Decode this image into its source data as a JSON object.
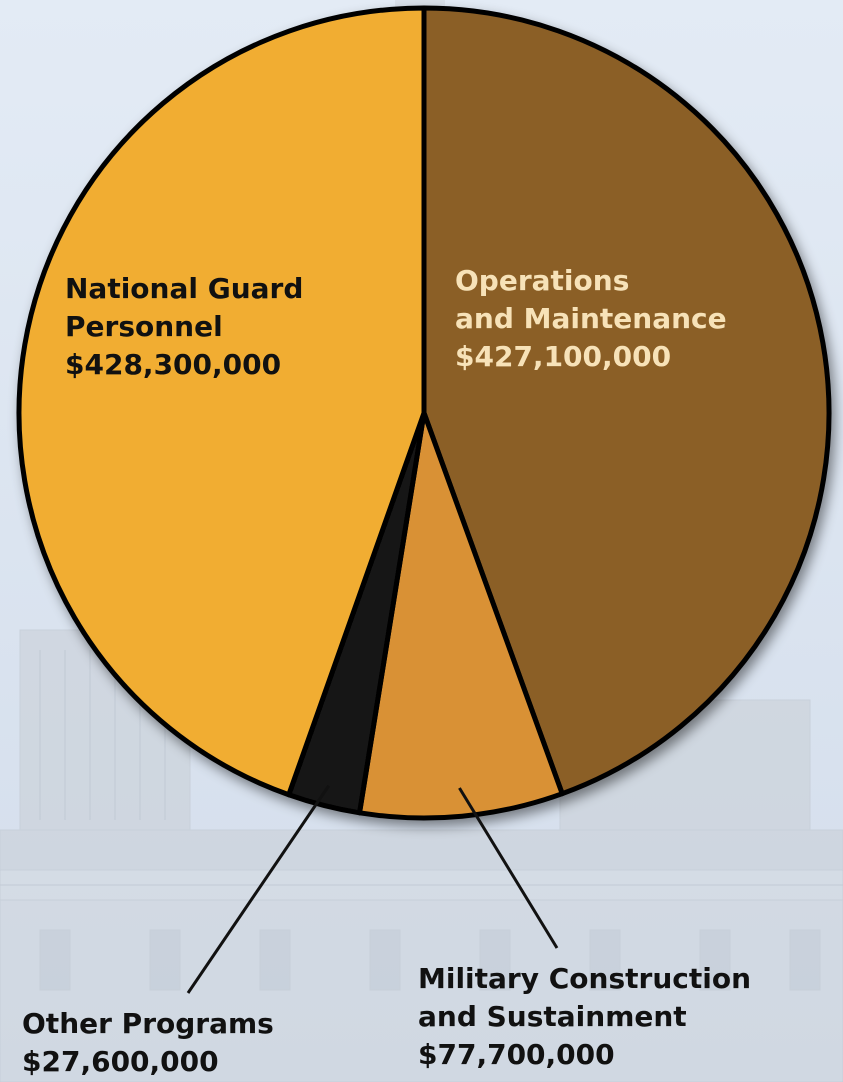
{
  "chart_data": {
    "type": "pie",
    "title": "",
    "slices": [
      {
        "name": "Operations and Maintenance",
        "value": 427100000,
        "value_label": "$427,100,000",
        "color": "#8b5e28"
      },
      {
        "name": "Military Construction and Sustainment",
        "value": 77700000,
        "value_label": "$77,700,000",
        "color": "#d99135"
      },
      {
        "name": "Other Programs",
        "value": 27600000,
        "value_label": "$27,600,000",
        "color": "#141414"
      },
      {
        "name": "National Guard Personnel",
        "value": 428300000,
        "value_label": "$428,300,000",
        "color": "#f1ad31"
      }
    ],
    "start": "top (12 o'clock)",
    "direction": "clockwise",
    "outline_color": "#000000",
    "legend": "none (labels placed on and around the pie)"
  },
  "labels": {
    "om": {
      "line1": "Operations",
      "line2": "and Maintenance",
      "line3": "$427,100,000"
    },
    "ngp": {
      "line1": "National Guard",
      "line2": "Personnel",
      "line3": "$428,300,000"
    },
    "mcs": {
      "line1": "Military Construction",
      "line2": "and Sustainment",
      "line3": "$77,700,000"
    },
    "op": {
      "line1": "Other Programs",
      "line2": "$27,600,000"
    }
  },
  "background": {
    "subject": "capitol-building",
    "color": "#dde7f3"
  }
}
